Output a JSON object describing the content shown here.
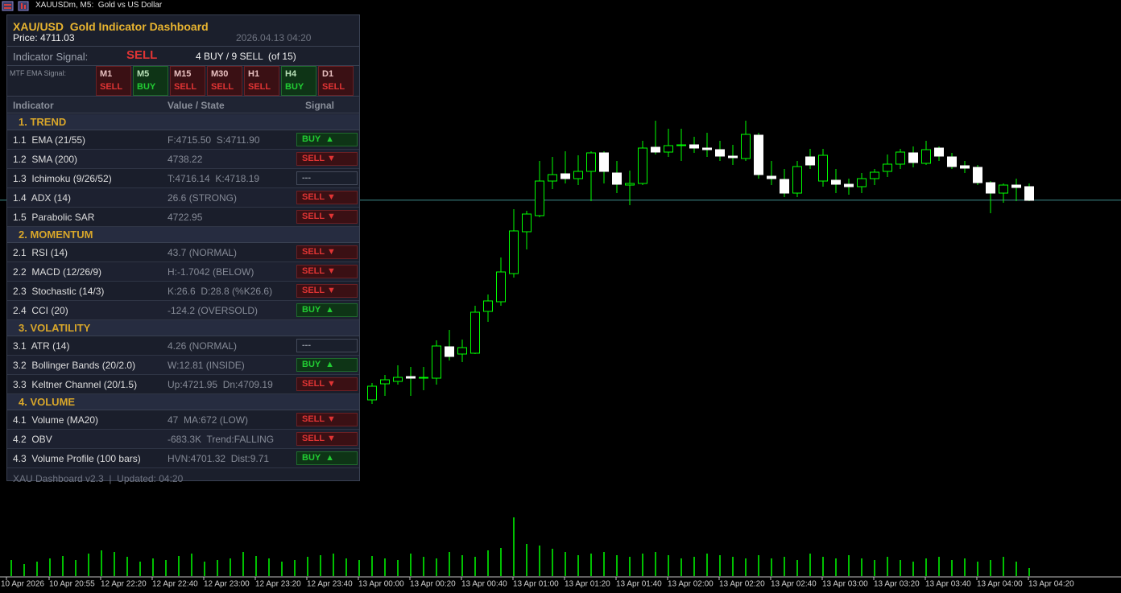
{
  "window": {
    "title": "XAUUSDm, M5:  Gold vs US Dollar"
  },
  "chart": {
    "type": "candlestick",
    "ylim": [
      4664,
      4734
    ],
    "y2lim": [
      0,
      100
    ],
    "price_line": 4711.03,
    "price_line_color": "#3f8f8f",
    "bull_color": "#00ff00",
    "bear_color": "#ffffff",
    "volume_color": "#00c000",
    "time_labels": [
      "10 Apr 2026",
      "10 Apr 20:55",
      "12 Apr 22:20",
      "12 Apr 22:40",
      "12 Apr 23:00",
      "12 Apr 23:20",
      "12 Apr 23:40",
      "13 Apr 00:00",
      "13 Apr 00:20",
      "13 Apr 00:40",
      "13 Apr 01:00",
      "13 Apr 01:20",
      "13 Apr 01:40",
      "13 Apr 02:00",
      "13 Apr 02:20",
      "13 Apr 02:40",
      "13 Apr 03:00",
      "13 Apr 03:20",
      "13 Apr 03:40",
      "13 Apr 04:00",
      "13 Apr 04:20"
    ],
    "open": [
      null,
      null,
      null,
      null,
      null,
      null,
      null,
      null,
      null,
      null,
      null,
      null,
      null,
      null,
      null,
      null,
      null,
      null,
      null,
      null,
      null,
      null,
      null,
      null,
      null,
      null,
      null,
      null,
      4686.2,
      4688.2,
      4688.5,
      4689.1,
      4688.9,
      4688.9,
      4692.8,
      4691.9,
      4692.0,
      4697.2,
      4698.4,
      4701.9,
      4707.1,
      4709.1,
      4713.4,
      4714.3,
      4713.7,
      4714.6,
      4716.9,
      4714.4,
      4712.9,
      4713.1,
      4717.6,
      4717.0,
      4717.8,
      4717.9,
      4717.5,
      4717.3,
      4716.5,
      4716.2,
      4719.1,
      4714.0,
      4713.6,
      4711.9,
      4716.4,
      4713.4,
      4713.5,
      4713.0,
      4712.7,
      4713.7,
      4714.6,
      4715.5,
      4716.9,
      4715.6,
      4717.5,
      4716.4,
      4715.3,
      4715.1,
      4713.2,
      4711.9,
      4712.9,
      4712.7
    ],
    "high": [
      null,
      null,
      null,
      null,
      null,
      null,
      null,
      null,
      null,
      null,
      null,
      null,
      null,
      null,
      null,
      null,
      null,
      null,
      null,
      null,
      null,
      null,
      null,
      null,
      null,
      null,
      null,
      null,
      4688.3,
      4689.3,
      4690.5,
      4690.3,
      4690.3,
      4693.6,
      4694.9,
      4693.7,
      4697.9,
      4699.3,
      4703.9,
      4709.9,
      4709.7,
      4715.9,
      4716.4,
      4717.1,
      4716.6,
      4717.1,
      4717.1,
      4715.9,
      4714.7,
      4718.4,
      4720.9,
      4719.9,
      4719.9,
      4718.9,
      4719.4,
      4718.4,
      4717.9,
      4720.9,
      4719.4,
      4715.9,
      4714.9,
      4715.9,
      4717.4,
      4717.4,
      4714.9,
      4713.7,
      4714.4,
      4714.9,
      4716.7,
      4717.4,
      4717.7,
      4718.4,
      4717.7,
      4716.9,
      4715.9,
      4715.4,
      4713.4,
      4713.1,
      4713.7,
      4713.1
    ],
    "low": [
      null,
      null,
      null,
      null,
      null,
      null,
      null,
      null,
      null,
      null,
      null,
      null,
      null,
      null,
      null,
      null,
      null,
      null,
      null,
      null,
      null,
      null,
      null,
      null,
      null,
      null,
      null,
      null,
      4685.7,
      4686.7,
      4688.1,
      4686.7,
      4687.4,
      4688.1,
      4691.1,
      4690.9,
      4691.9,
      4695.9,
      4697.9,
      4701.4,
      4704.9,
      4708.9,
      4712.4,
      4713.1,
      4712.9,
      4710.9,
      4713.1,
      4711.9,
      4710.4,
      4712.9,
      4716.7,
      4716.4,
      4715.9,
      4716.9,
      4716.4,
      4715.9,
      4715.4,
      4715.9,
      4713.7,
      4712.9,
      4711.4,
      4711.4,
      4714.9,
      4712.7,
      4711.9,
      4711.7,
      4711.9,
      4712.9,
      4713.9,
      4714.9,
      4715.1,
      4715.4,
      4715.9,
      4714.9,
      4714.4,
      4712.9,
      4709.4,
      4710.7,
      4710.9,
      4710.9
    ],
    "close": [
      null,
      null,
      null,
      null,
      null,
      null,
      null,
      null,
      null,
      null,
      null,
      null,
      null,
      null,
      null,
      null,
      null,
      null,
      null,
      null,
      null,
      null,
      null,
      null,
      null,
      null,
      null,
      null,
      4687.9,
      4688.7,
      4689.0,
      4688.9,
      4689.0,
      4692.9,
      4691.6,
      4692.7,
      4697.1,
      4698.5,
      4702.1,
      4707.2,
      4709.3,
      4713.4,
      4714.2,
      4713.7,
      4714.6,
      4716.9,
      4714.6,
      4713.0,
      4713.1,
      4717.5,
      4717.0,
      4717.8,
      4717.9,
      4717.5,
      4717.3,
      4716.5,
      4716.3,
      4719.2,
      4714.2,
      4713.7,
      4711.9,
      4715.2,
      4715.4,
      4716.6,
      4713.0,
      4712.7,
      4713.7,
      4714.5,
      4715.5,
      4717.0,
      4715.7,
      4717.3,
      4716.5,
      4715.2,
      4715.0,
      4713.2,
      4711.9,
      4712.9,
      4712.6,
      4711.0
    ],
    "volume": [
      20,
      15,
      18,
      22,
      25,
      20,
      28,
      32,
      30,
      24,
      18,
      22,
      20,
      25,
      28,
      18,
      20,
      22,
      30,
      25,
      22,
      18,
      20,
      24,
      26,
      28,
      22,
      20,
      25,
      22,
      20,
      28,
      24,
      22,
      30,
      26,
      24,
      32,
      35,
      73,
      40,
      38,
      34,
      30,
      26,
      28,
      30,
      26,
      24,
      28,
      30,
      26,
      22,
      24,
      28,
      26,
      24,
      22,
      26,
      22,
      24,
      20,
      28,
      24,
      22,
      26,
      22,
      20,
      24,
      20,
      18,
      22,
      24,
      20,
      22,
      18,
      20,
      24,
      18,
      10
    ]
  },
  "dashboard": {
    "title": "XAU/USD  Gold Indicator Dashboard",
    "price": "Price: 4711.03",
    "datetime": "2026.04.13 04:20",
    "signal_label": "Indicator Signal:",
    "signal": "SELL",
    "signal_color": "#e03434",
    "summary": "4 BUY / 9 SELL  (of 15)",
    "mtf_label": "MTF EMA Signal:",
    "mtf": [
      {
        "tf": "M1",
        "signal": "SELL",
        "color": "#e03434"
      },
      {
        "tf": "M5",
        "signal": "BUY",
        "color": "#22cc33"
      },
      {
        "tf": "M15",
        "signal": "SELL",
        "color": "#e03434"
      },
      {
        "tf": "M30",
        "signal": "SELL",
        "color": "#e03434"
      },
      {
        "tf": "H1",
        "signal": "SELL",
        "color": "#e03434"
      },
      {
        "tf": "H4",
        "signal": "BUY",
        "color": "#22cc33"
      },
      {
        "tf": "D1",
        "signal": "SELL",
        "color": "#e03434"
      }
    ],
    "columns": [
      "Indicator",
      "Value / State",
      "Signal"
    ],
    "sections": [
      {
        "title": "1. TREND",
        "rows": [
          {
            "name": "1.1  EMA (21/55)",
            "value": "F:4715.50  S:4711.90",
            "signal": "BUY  ▲",
            "color": "#22cc33"
          },
          {
            "name": "1.2  SMA (200)",
            "value": "4738.22",
            "signal": "SELL ▼",
            "color": "#e03434"
          },
          {
            "name": "1.3  Ichimoku (9/26/52)",
            "value": "T:4716.14  K:4718.19",
            "signal": "---",
            "color": "#8a8f9a"
          },
          {
            "name": "1.4  ADX (14)",
            "value": "26.6 (STRONG)",
            "signal": "SELL ▼",
            "color": "#e03434"
          },
          {
            "name": "1.5  Parabolic SAR",
            "value": "4722.95",
            "signal": "SELL ▼",
            "color": "#e03434"
          }
        ]
      },
      {
        "title": "2. MOMENTUM",
        "rows": [
          {
            "name": "2.1  RSI (14)",
            "value": "43.7 (NORMAL)",
            "signal": "SELL ▼",
            "color": "#e03434"
          },
          {
            "name": "2.2  MACD (12/26/9)",
            "value": "H:-1.7042 (BELOW)",
            "signal": "SELL ▼",
            "color": "#e03434"
          },
          {
            "name": "2.3  Stochastic (14/3)",
            "value": "K:26.6  D:28.8 (%K26.6)",
            "signal": "SELL ▼",
            "color": "#e03434"
          },
          {
            "name": "2.4  CCI (20)",
            "value": "-124.2 (OVERSOLD)",
            "signal": "BUY  ▲",
            "color": "#22cc33"
          }
        ]
      },
      {
        "title": "3. VOLATILITY",
        "rows": [
          {
            "name": "3.1  ATR (14)",
            "value": "4.26 (NORMAL)",
            "signal": "---",
            "color": "#8a8f9a"
          },
          {
            "name": "3.2  Bollinger Bands (20/2.0)",
            "value": "W:12.81 (INSIDE)",
            "signal": "BUY  ▲",
            "color": "#22cc33"
          },
          {
            "name": "3.3  Keltner Channel (20/1.5)",
            "value": "Up:4721.95  Dn:4709.19",
            "signal": "SELL ▼",
            "color": "#e03434"
          }
        ]
      },
      {
        "title": "4. VOLUME",
        "rows": [
          {
            "name": "4.1  Volume (MA20)",
            "value": "47  MA:672 (LOW)",
            "signal": "SELL ▼",
            "color": "#e03434"
          },
          {
            "name": "4.2  OBV",
            "value": "-683.3K  Trend:FALLING",
            "signal": "SELL ▼",
            "color": "#e03434"
          },
          {
            "name": "4.3  Volume Profile (100 bars)",
            "value": "HVN:4701.32  Dist:9.71",
            "signal": "BUY  ▲",
            "color": "#22cc33"
          }
        ]
      }
    ],
    "footer": "XAU Dashboard v2.3  |  Updated: 04:20"
  }
}
